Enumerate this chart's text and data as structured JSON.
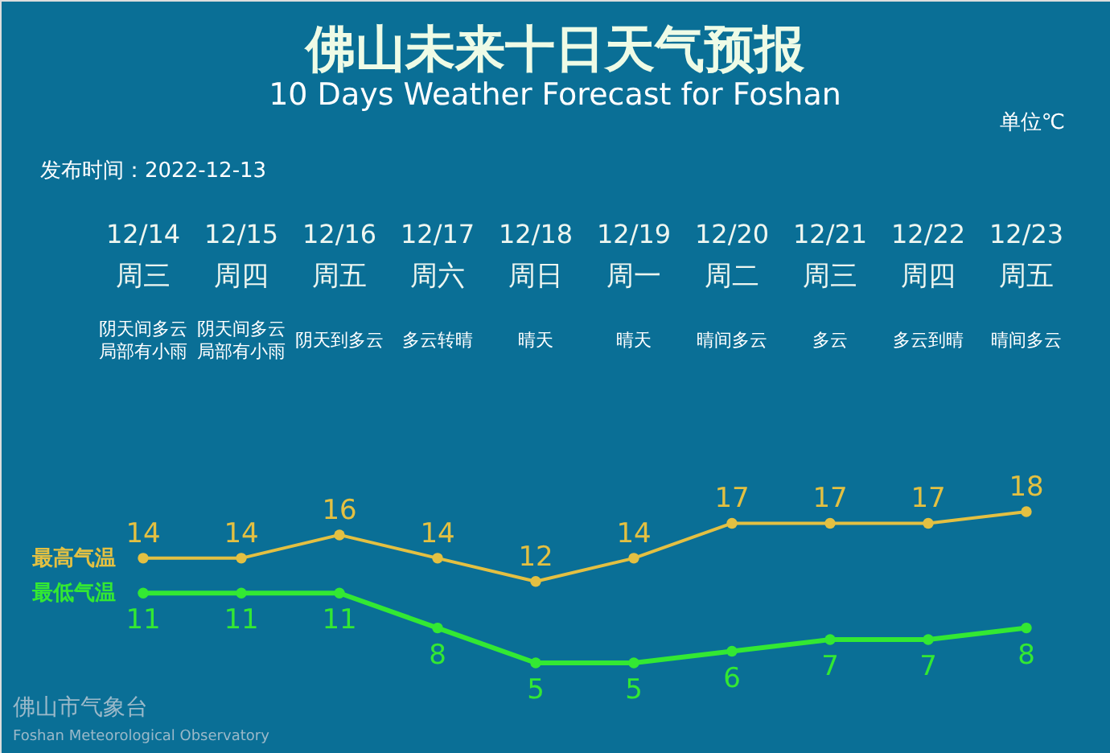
{
  "chart_data": {
    "type": "line",
    "title": "佛山未来十日天气预报",
    "subtitle": "10 Days Weather Forecast for Foshan",
    "categories": [
      "12/14",
      "12/15",
      "12/16",
      "12/17",
      "12/18",
      "12/19",
      "12/20",
      "12/21",
      "12/22",
      "12/23"
    ],
    "series": [
      {
        "name": "最高气温",
        "color": "#e3c042",
        "values": [
          14,
          14,
          16,
          14,
          12,
          14,
          17,
          17,
          17,
          18
        ]
      },
      {
        "name": "最低气温",
        "color": "#33e833",
        "values": [
          11,
          11,
          11,
          8,
          5,
          5,
          6,
          7,
          7,
          8
        ]
      }
    ],
    "data_labels": true,
    "marker": "circle",
    "line_style": "solid",
    "annotations": [
      "单位℃",
      "发布时间：2022-12-13",
      "周三",
      "阴天间多云局部有小雨",
      "周四",
      "阴天间多云局部有小雨",
      "周五",
      "阴天到多云",
      "周六",
      "多云转晴",
      "周日",
      "晴天",
      "周一",
      "晴天",
      "周二",
      "晴间多云",
      "周三",
      "多云",
      "周四",
      "多云到晴",
      "周五",
      "晴间多云",
      "佛山市气象台",
      "Foshan Meteorological Observatory"
    ]
  }
}
